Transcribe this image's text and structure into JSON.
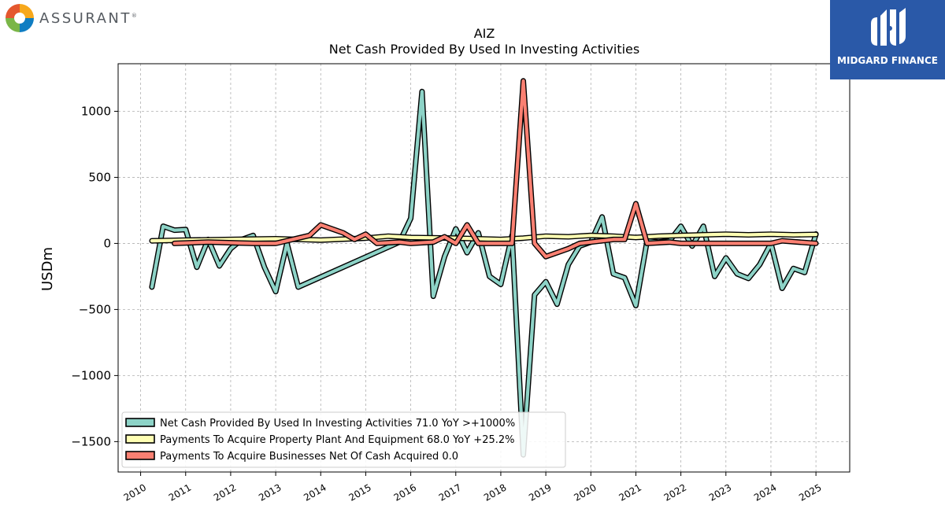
{
  "branding": {
    "left_logo_text": "ASSURANT",
    "left_logo_mark": "®",
    "left_logo_colors": [
      "#f7a81b",
      "#0f7dc2",
      "#7ab648",
      "#e4572e"
    ],
    "right_logo_text": "MIDGARD FINANCE",
    "right_logo_bg": "#2a59a8"
  },
  "chart_data": {
    "type": "line",
    "title": "AIZ",
    "subtitle": "Net Cash Provided By Used In Investing Activities",
    "xlabel": "",
    "ylabel": "USDm",
    "xlim": [
      2009.5,
      2025.75
    ],
    "ylim": [
      -1730,
      1360
    ],
    "x_ticks": [
      "2010",
      "2011",
      "2012",
      "2013",
      "2014",
      "2015",
      "2016",
      "2017",
      "2018",
      "2019",
      "2020",
      "2021",
      "2022",
      "2023",
      "2024",
      "2025"
    ],
    "y_ticks": [
      1000,
      500,
      0,
      -500,
      -1000,
      -1500
    ],
    "y_tick_labels": [
      "1000",
      "500",
      "0",
      "−500",
      "−1000",
      "−1500"
    ],
    "grid": true,
    "legend_position": "lower-left",
    "series": [
      {
        "name": "Net Cash Provided By Used In Investing Activities",
        "legend_label": "Net Cash Provided By Used In Investing Activities  71.0 YoY >+1000%",
        "color": "#8dd3c7",
        "x": [
          2010.25,
          2010.5,
          2010.75,
          2011.0,
          2011.25,
          2011.5,
          2011.75,
          2012.0,
          2012.25,
          2012.5,
          2012.75,
          2013.0,
          2013.25,
          2013.5,
          2015.75,
          2016.0,
          2016.25,
          2016.5,
          2016.75,
          2017.0,
          2017.25,
          2017.5,
          2017.75,
          2018.0,
          2018.25,
          2018.5,
          2018.75,
          2019.0,
          2019.25,
          2019.5,
          2019.75,
          2020.0,
          2020.25,
          2020.5,
          2020.75,
          2021.0,
          2021.25,
          2021.5,
          2021.75,
          2022.0,
          2022.25,
          2022.5,
          2022.75,
          2023.0,
          2023.25,
          2023.5,
          2023.75,
          2024.0,
          2024.25,
          2024.5,
          2024.75,
          2025.0
        ],
        "y": [
          -330,
          130,
          100,
          105,
          -180,
          30,
          -170,
          -40,
          30,
          60,
          -180,
          -365,
          0,
          -330,
          10,
          190,
          1150,
          -400,
          -100,
          110,
          -70,
          80,
          -250,
          -310,
          60,
          -1600,
          -390,
          -290,
          -460,
          -160,
          -20,
          10,
          200,
          -230,
          -260,
          -470,
          20,
          10,
          20,
          130,
          -20,
          130,
          -250,
          -110,
          -230,
          -265,
          -160,
          0,
          -340,
          -190,
          -220,
          71
        ]
      },
      {
        "name": "Payments To Acquire Property Plant And Equipment",
        "legend_label": "Payments To Acquire Property Plant And Equipment  68.0 YoY +25.2%",
        "color": "#ffffb3",
        "x": [
          2010.25,
          2011.0,
          2012.0,
          2013.0,
          2014.0,
          2015.0,
          2015.5,
          2016.0,
          2017.0,
          2018.0,
          2018.5,
          2019.0,
          2019.5,
          2020.0,
          2020.5,
          2021.0,
          2021.5,
          2022.0,
          2022.5,
          2023.0,
          2023.5,
          2024.0,
          2024.5,
          2025.0
        ],
        "y": [
          20,
          25,
          30,
          35,
          25,
          40,
          55,
          45,
          40,
          30,
          40,
          55,
          50,
          60,
          55,
          45,
          55,
          60,
          65,
          70,
          65,
          70,
          65,
          68
        ]
      },
      {
        "name": "Payments To Acquire Businesses Net Of Cash Acquired",
        "legend_label": "Payments To Acquire Businesses Net Of Cash Acquired  0.0",
        "color": "#fb8072",
        "x": [
          2010.75,
          2011.5,
          2012.5,
          2013.0,
          2013.75,
          2014.0,
          2014.5,
          2014.75,
          2015.0,
          2015.25,
          2015.75,
          2016.0,
          2016.5,
          2016.75,
          2017.0,
          2017.25,
          2017.5,
          2018.0,
          2018.25,
          2018.5,
          2018.75,
          2019.0,
          2019.5,
          2019.75,
          2020.5,
          2020.75,
          2021.0,
          2021.25,
          2021.75,
          2022.0,
          2023.0,
          2024.0,
          2024.25,
          2025.0
        ],
        "y": [
          0,
          10,
          0,
          0,
          60,
          140,
          80,
          30,
          70,
          0,
          10,
          0,
          10,
          50,
          0,
          140,
          0,
          0,
          0,
          1230,
          0,
          -100,
          -40,
          0,
          30,
          30,
          300,
          0,
          10,
          0,
          0,
          0,
          20,
          0
        ]
      }
    ]
  }
}
